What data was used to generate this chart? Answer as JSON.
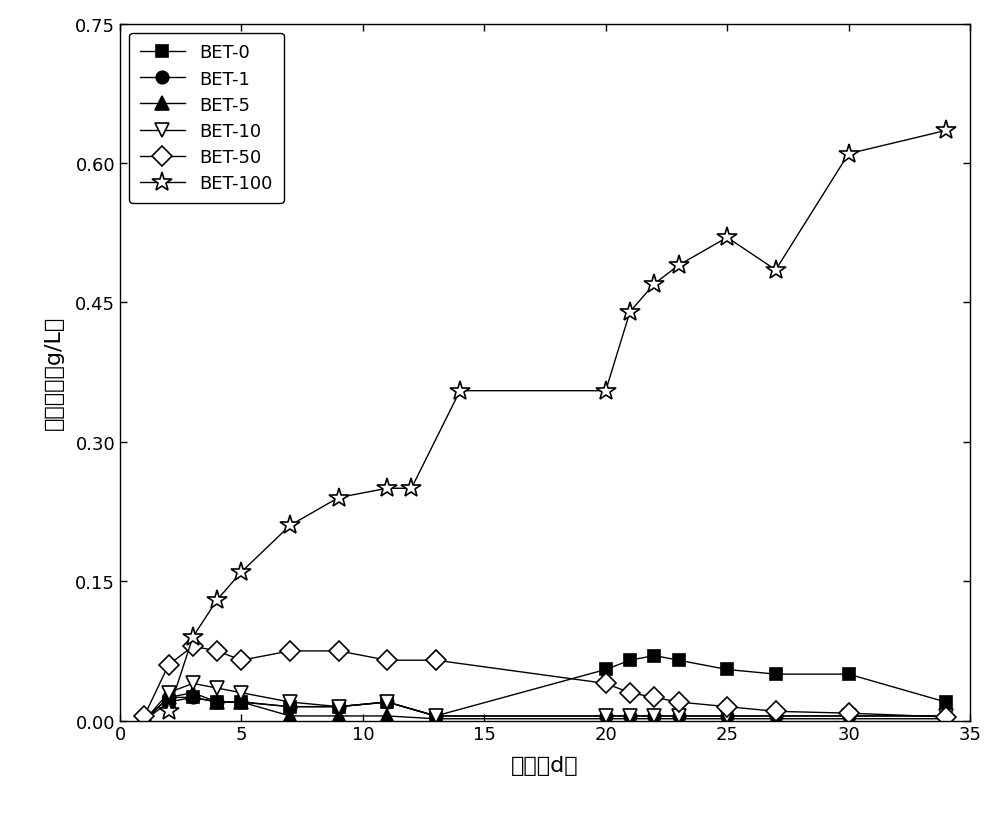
{
  "series": {
    "BET-0": {
      "x": [
        1,
        2,
        3,
        4,
        5,
        7,
        9,
        11,
        13,
        20,
        21,
        22,
        23,
        25,
        27,
        30,
        34
      ],
      "y": [
        0.0,
        0.02,
        0.025,
        0.02,
        0.02,
        0.015,
        0.015,
        0.02,
        0.005,
        0.055,
        0.065,
        0.07,
        0.065,
        0.055,
        0.05,
        0.05,
        0.02
      ],
      "marker": "s",
      "fillstyle": "full",
      "color": "#000000"
    },
    "BET-1": {
      "x": [
        1,
        2,
        3,
        4,
        5,
        7,
        9,
        11,
        13,
        20,
        21,
        22,
        23,
        25,
        27,
        30,
        34
      ],
      "y": [
        0.0,
        0.025,
        0.025,
        0.02,
        0.02,
        0.015,
        0.015,
        0.02,
        0.005,
        0.005,
        0.005,
        0.005,
        0.005,
        0.005,
        0.005,
        0.005,
        0.005
      ],
      "marker": "o",
      "fillstyle": "full",
      "color": "#000000"
    },
    "BET-5": {
      "x": [
        1,
        2,
        3,
        4,
        5,
        7,
        9,
        11,
        13,
        20,
        21,
        22,
        23,
        25,
        27,
        30,
        34
      ],
      "y": [
        0.0,
        0.025,
        0.03,
        0.02,
        0.02,
        0.005,
        0.005,
        0.005,
        0.002,
        0.002,
        0.002,
        0.002,
        0.002,
        0.002,
        0.002,
        0.002,
        0.002
      ],
      "marker": "^",
      "fillstyle": "full",
      "color": "#000000"
    },
    "BET-10": {
      "x": [
        1,
        2,
        3,
        4,
        5,
        7,
        9,
        11,
        13,
        20,
        21,
        22,
        23,
        25,
        27,
        30,
        34
      ],
      "y": [
        0.0,
        0.03,
        0.04,
        0.035,
        0.03,
        0.02,
        0.015,
        0.02,
        0.005,
        0.005,
        0.005,
        0.005,
        0.005,
        0.005,
        0.005,
        0.005,
        0.005
      ],
      "marker": "v",
      "fillstyle": "none",
      "color": "#000000"
    },
    "BET-50": {
      "x": [
        1,
        2,
        3,
        4,
        5,
        7,
        9,
        11,
        13,
        20,
        21,
        22,
        23,
        25,
        27,
        30,
        34
      ],
      "y": [
        0.005,
        0.06,
        0.08,
        0.075,
        0.065,
        0.075,
        0.075,
        0.065,
        0.065,
        0.04,
        0.03,
        0.025,
        0.02,
        0.015,
        0.01,
        0.008,
        0.004
      ],
      "marker": "D",
      "fillstyle": "none",
      "color": "#000000"
    },
    "BET-100": {
      "x": [
        2,
        3,
        4,
        5,
        7,
        9,
        11,
        12,
        14,
        20,
        21,
        22,
        23,
        25,
        27,
        30,
        34
      ],
      "y": [
        0.01,
        0.09,
        0.13,
        0.16,
        0.21,
        0.24,
        0.25,
        0.25,
        0.355,
        0.355,
        0.44,
        0.47,
        0.49,
        0.52,
        0.485,
        0.61,
        0.635
      ],
      "marker": "*",
      "fillstyle": "none",
      "color": "#000000"
    }
  },
  "xlabel": "时间（d）",
  "ylabel": "乙酸浓度（g/L）",
  "xlim": [
    0,
    35
  ],
  "ylim": [
    0,
    0.75
  ],
  "xticks": [
    0,
    5,
    10,
    15,
    20,
    25,
    30,
    35
  ],
  "yticks": [
    0.0,
    0.15,
    0.3,
    0.45,
    0.6,
    0.75
  ],
  "background_color": "#ffffff",
  "line_color": "#000000",
  "legend_order": [
    "BET-0",
    "BET-1",
    "BET-5",
    "BET-10",
    "BET-50",
    "BET-100"
  ]
}
